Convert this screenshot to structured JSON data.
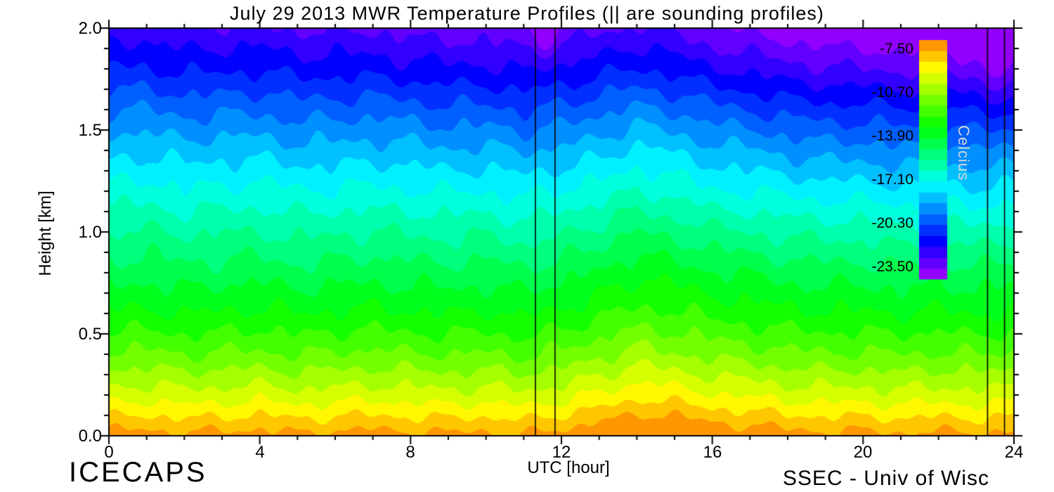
{
  "chart_data": {
    "type": "heatmap",
    "title": "July 29 2013 MWR Temperature Profiles (|| are sounding profiles)",
    "xlabel": "UTC [hour]",
    "ylabel": "Height [km]",
    "xlim": [
      0,
      24
    ],
    "ylim": [
      0,
      2.0
    ],
    "x_ticks": [
      0,
      4,
      8,
      12,
      16,
      20,
      24
    ],
    "x_tick_labels": [
      "0",
      "4",
      "8",
      "12",
      "16",
      "20",
      "24"
    ],
    "x_minor_step_hours": 1,
    "y_ticks": [
      0.0,
      0.5,
      1.0,
      1.5,
      2.0
    ],
    "y_tick_labels": [
      "0.0",
      "0.5",
      "1.0",
      "1.5",
      "2.0"
    ],
    "y_minor_step_km": 0.1,
    "grid_lines": "off",
    "colorbar": {
      "label": "Celcius",
      "tick_labels": [
        "-7.50",
        "-10.70",
        "-13.90",
        "-17.10",
        "-20.30",
        "-23.50"
      ],
      "tick_values": [
        -7.5,
        -10.7,
        -13.9,
        -17.1,
        -20.3,
        -23.5
      ],
      "vmin": -24.4,
      "vmax": -6.8,
      "band_step": 0.8,
      "orientation": "vertical",
      "position": "inside-right"
    },
    "sounding_lines_utc": [
      11.31,
      11.83,
      23.3,
      23.75
    ],
    "cold_pockets": [
      {
        "utc": 11.57,
        "height_km": 2.0,
        "utc_sigma": 0.28,
        "height_sigma": 0.1,
        "amplitude_c": -1.8
      },
      {
        "utc": 23.55,
        "height_km": 2.05,
        "utc_sigma": 0.3,
        "height_sigma": 0.28,
        "amplitude_c": -2.2
      }
    ],
    "grid": {
      "x_utc_hours": [
        0,
        1,
        2,
        3,
        4,
        5,
        6,
        7,
        8,
        9,
        10,
        11,
        12,
        13,
        14,
        15,
        16,
        17,
        18,
        19,
        20,
        21,
        22,
        23,
        24
      ],
      "y_km": [
        0.0,
        0.2,
        0.4,
        0.6,
        0.8,
        1.0,
        1.2,
        1.4,
        1.6,
        1.8,
        2.0
      ],
      "temperature_c": [
        [
          -7.3,
          -7.2,
          -7.4,
          -7.3,
          -7.2,
          -7.4,
          -7.3,
          -7.2,
          -7.3,
          -7.4,
          -7.3,
          -7.5,
          -7.2,
          -6.8,
          -6.3,
          -6.5,
          -6.8,
          -7.0,
          -7.2,
          -7.3,
          -7.3,
          -7.4,
          -7.3,
          -7.4,
          -7.3
        ],
        [
          -9.6,
          -9.5,
          -9.7,
          -9.6,
          -9.5,
          -9.7,
          -9.6,
          -9.5,
          -9.6,
          -9.7,
          -9.6,
          -9.8,
          -9.5,
          -9.1,
          -8.6,
          -8.8,
          -9.1,
          -9.3,
          -9.5,
          -9.6,
          -9.6,
          -9.7,
          -9.6,
          -9.7,
          -9.6
        ],
        [
          -11.5,
          -11.4,
          -11.6,
          -11.5,
          -11.4,
          -11.6,
          -11.5,
          -11.4,
          -11.5,
          -11.6,
          -11.5,
          -11.7,
          -11.4,
          -11.0,
          -10.5,
          -10.7,
          -11.0,
          -11.2,
          -11.4,
          -11.5,
          -11.5,
          -11.6,
          -11.5,
          -11.6,
          -11.5
        ],
        [
          -13.1,
          -13.0,
          -13.2,
          -13.1,
          -13.0,
          -13.2,
          -13.1,
          -13.0,
          -13.1,
          -13.2,
          -13.1,
          -13.3,
          -13.0,
          -12.6,
          -12.1,
          -12.3,
          -12.6,
          -12.8,
          -13.0,
          -13.1,
          -13.1,
          -13.2,
          -13.1,
          -13.2,
          -13.1
        ],
        [
          -14.4,
          -14.3,
          -14.5,
          -14.4,
          -14.3,
          -14.5,
          -14.4,
          -14.3,
          -14.4,
          -14.5,
          -14.4,
          -14.6,
          -14.3,
          -13.9,
          -13.4,
          -13.6,
          -13.9,
          -14.1,
          -14.3,
          -14.4,
          -14.4,
          -14.5,
          -14.4,
          -14.5,
          -14.4
        ],
        [
          -15.6,
          -15.5,
          -15.7,
          -15.6,
          -15.6,
          -15.8,
          -15.7,
          -15.6,
          -15.7,
          -15.8,
          -15.7,
          -16.0,
          -15.7,
          -15.3,
          -14.8,
          -15.0,
          -15.4,
          -15.6,
          -15.8,
          -15.9,
          -15.9,
          -16.1,
          -16.0,
          -16.1,
          -16.0
        ],
        [
          -16.9,
          -16.8,
          -17.1,
          -17.0,
          -16.9,
          -17.1,
          -17.1,
          -17.0,
          -17.1,
          -17.2,
          -17.2,
          -17.4,
          -17.1,
          -16.8,
          -16.3,
          -16.7,
          -17.1,
          -17.2,
          -17.4,
          -17.5,
          -17.6,
          -17.7,
          -17.6,
          -17.8,
          -17.7
        ],
        [
          -18.2,
          -18.2,
          -18.4,
          -18.3,
          -18.3,
          -18.5,
          -18.5,
          -18.4,
          -18.5,
          -18.7,
          -18.6,
          -18.9,
          -18.6,
          -18.3,
          -17.8,
          -18.1,
          -18.5,
          -18.7,
          -19.0,
          -19.2,
          -19.2,
          -19.4,
          -19.3,
          -19.5,
          -19.4
        ],
        [
          -19.6,
          -19.6,
          -19.8,
          -19.8,
          -19.7,
          -20.0,
          -19.9,
          -19.9,
          -20.0,
          -20.2,
          -20.2,
          -20.4,
          -20.2,
          -19.8,
          -19.4,
          -19.7,
          -20.1,
          -20.4,
          -20.7,
          -20.9,
          -20.9,
          -21.1,
          -21.1,
          -21.3,
          -21.2
        ],
        [
          -21.1,
          -21.1,
          -21.4,
          -21.3,
          -21.3,
          -21.5,
          -21.5,
          -21.5,
          -21.7,
          -21.8,
          -21.8,
          -22.1,
          -21.8,
          -21.5,
          -21.1,
          -21.5,
          -21.9,
          -22.2,
          -22.5,
          -22.7,
          -22.8,
          -22.9,
          -22.9,
          -23.2,
          -23.1
        ],
        [
          -22.4,
          -22.4,
          -22.7,
          -22.7,
          -22.6,
          -22.9,
          -22.9,
          -22.9,
          -23.1,
          -23.3,
          -23.2,
          -23.5,
          -23.3,
          -23.0,
          -22.7,
          -23.0,
          -23.5,
          -23.8,
          -24.1,
          -24.3,
          -24.4,
          -24.6,
          -24.6,
          -24.9,
          -24.8
        ]
      ]
    }
  },
  "footer": {
    "left": "ICECAPS",
    "right": "SSEC - Univ of Wisc"
  }
}
